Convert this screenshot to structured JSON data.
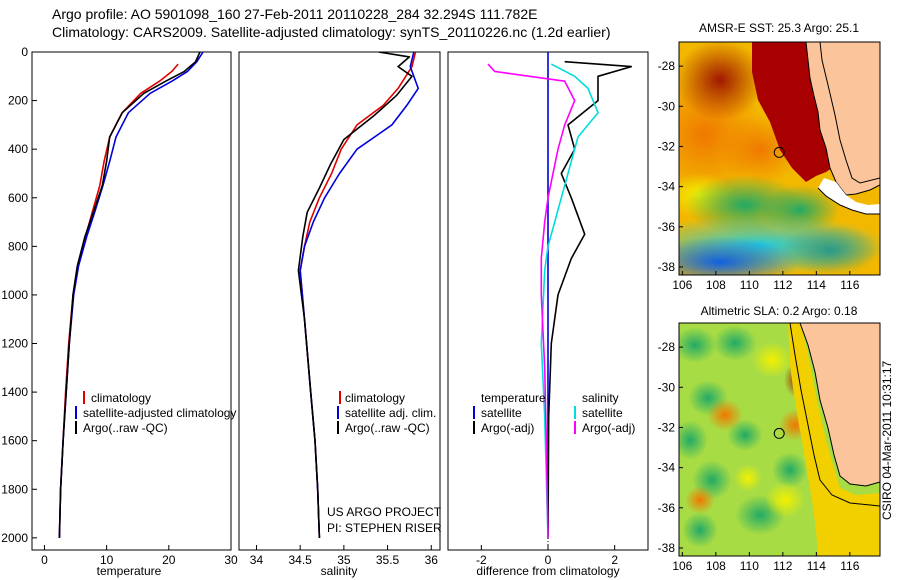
{
  "header": {
    "line1": "Argo profile: AO 5901098_160 27-Feb-2011 20110228_284 32.294S 111.782E",
    "line2": "Climatology: CARS2009. Satellite-adjusted climatology: synTS_20110226.nc (1.2d earlier)"
  },
  "side_label": "CSIRO 04-Mar-2011 10:31:17",
  "project": {
    "line1": "US ARGO PROJECT",
    "line2": "PI: STEPHEN RISER"
  },
  "colors": {
    "climatology": "#e00000",
    "satellite": "#0000dd",
    "argo": "#000000",
    "sat_diff": "#00dddd",
    "argo_diff": "#ff00ff",
    "land": "#fbc49a"
  },
  "chart_data": [
    {
      "type": "line",
      "xlabel": "temperature",
      "xlim": [
        -2,
        30
      ],
      "ylim": [
        0,
        2050
      ],
      "xticks": [
        0,
        10,
        20,
        30
      ],
      "yticks": [
        0,
        200,
        400,
        600,
        800,
        1000,
        1200,
        1400,
        1600,
        1800,
        2000
      ],
      "legend": {
        "placement": "lower-center",
        "entries": [
          "climatology",
          "satellite-adjusted climatology",
          "Argo(..raw -QC)"
        ]
      },
      "series": [
        {
          "name": "climatology",
          "color": "#e00000",
          "x": [
            21.5,
            20.5,
            18.5,
            15.5,
            12.5,
            10.5,
            9.6,
            8.9,
            7.8,
            6.6,
            5.3,
            4.6,
            3.9,
            3.4,
            3.0,
            2.6,
            2.4
          ],
          "y": [
            50,
            80,
            120,
            170,
            250,
            350,
            450,
            550,
            650,
            760,
            880,
            1000,
            1200,
            1400,
            1600,
            1800,
            2000
          ]
        },
        {
          "name": "satellite-adjusted climatology",
          "color": "#0000dd",
          "x": [
            25.5,
            24.5,
            23.0,
            20.5,
            17.0,
            13.5,
            11.5,
            10.5,
            9.4,
            8.2,
            6.8,
            5.5,
            4.7,
            4.0,
            3.5,
            3.0,
            2.6,
            2.4
          ],
          "y": [
            0,
            40,
            80,
            120,
            170,
            250,
            350,
            450,
            550,
            650,
            760,
            880,
            1000,
            1200,
            1400,
            1600,
            1800,
            2000
          ]
        },
        {
          "name": "Argo(..raw -QC)",
          "color": "#000000",
          "x": [
            25.0,
            24.3,
            22.5,
            19.5,
            16.0,
            12.5,
            10.5,
            10.0,
            9.3,
            8.0,
            6.5,
            5.3,
            4.6,
            4.0,
            3.5,
            3.0,
            2.6,
            2.4
          ],
          "y": [
            0,
            40,
            80,
            120,
            170,
            250,
            350,
            450,
            550,
            650,
            760,
            880,
            1000,
            1200,
            1400,
            1600,
            1800,
            2000
          ]
        }
      ]
    },
    {
      "type": "line",
      "xlabel": "salinity",
      "xlim": [
        33.8,
        36.1
      ],
      "ylim": [
        0,
        2050
      ],
      "xticks": [
        34,
        34.5,
        35,
        35.5,
        36
      ],
      "legend": {
        "placement": "lower-center",
        "entries": [
          "climatology",
          "satellite adj. clim.",
          "Argo(..raw -QC)"
        ]
      },
      "series": [
        {
          "name": "climatology",
          "color": "#e00000",
          "x": [
            35.82,
            35.78,
            35.62,
            35.45,
            35.15,
            34.97,
            34.86,
            34.72,
            34.61,
            34.55,
            34.5,
            34.55,
            34.62,
            34.67,
            34.7,
            34.72
          ],
          "y": [
            0,
            60,
            150,
            220,
            300,
            400,
            500,
            600,
            700,
            800,
            900,
            1100,
            1400,
            1600,
            1800,
            2000
          ]
        },
        {
          "name": "satellite adj. clim.",
          "color": "#0000dd",
          "x": [
            35.8,
            35.76,
            35.85,
            35.72,
            35.55,
            35.15,
            34.95,
            34.78,
            34.65,
            34.55,
            34.5,
            34.55,
            34.62,
            34.67,
            34.7,
            34.72
          ],
          "y": [
            0,
            60,
            150,
            220,
            300,
            400,
            500,
            600,
            700,
            800,
            900,
            1100,
            1400,
            1600,
            1800,
            2000
          ]
        },
        {
          "name": "Argo(..raw -QC)",
          "color": "#000000",
          "x": [
            35.4,
            35.75,
            35.62,
            35.78,
            35.6,
            35.35,
            35.0,
            34.85,
            34.72,
            34.58,
            34.53,
            34.48,
            34.55,
            34.62,
            34.67,
            34.7,
            34.72
          ],
          "y": [
            0,
            20,
            60,
            100,
            180,
            260,
            360,
            460,
            560,
            660,
            760,
            900,
            1100,
            1400,
            1600,
            1800,
            2000
          ]
        }
      ]
    },
    {
      "type": "line",
      "xlabel": "difference from climatology",
      "xlim": [
        -3,
        3
      ],
      "ylim": [
        0,
        2050
      ],
      "xticks": [
        -2,
        0,
        2
      ],
      "legend": {
        "placement": "lower-center",
        "entries": [
          "temperature",
          "satellite",
          "Argo(-adj)",
          "salinity",
          "satellite",
          "Argo(-adj)"
        ]
      },
      "series": [
        {
          "name": "temperature satellite",
          "color": "#0000dd",
          "x": [
            0,
            0,
            0,
            0,
            0
          ],
          "y": [
            0,
            500,
            1000,
            1500,
            2000
          ]
        },
        {
          "name": "temperature Argo(-adj)",
          "color": "#000000",
          "x": [
            0.5,
            2.5,
            1.5,
            1.5,
            0.6,
            0.8,
            0.4,
            0.7,
            1.1,
            0.7,
            0.3,
            0.1,
            0.02,
            0
          ],
          "y": [
            40,
            60,
            100,
            200,
            300,
            400,
            500,
            600,
            750,
            850,
            1000,
            1200,
            1500,
            2000
          ]
        },
        {
          "name": "salinity satellite",
          "color": "#00dddd",
          "x": [
            0.1,
            0.8,
            1.2,
            1.5,
            0.9,
            0.6,
            0.4,
            0.2,
            0,
            -0.1,
            -0.2,
            -0.1,
            0
          ],
          "y": [
            50,
            100,
            150,
            250,
            350,
            500,
            600,
            700,
            800,
            900,
            1200,
            1500,
            2000
          ]
        },
        {
          "name": "salinity Argo(-adj)",
          "color": "#ff00ff",
          "x": [
            -1.8,
            -1.6,
            0.5,
            0.8,
            0.5,
            0.3,
            0.0,
            -0.1,
            -0.2,
            -0.2,
            -0.1,
            -0.05,
            0
          ],
          "y": [
            50,
            80,
            120,
            200,
            300,
            400,
            600,
            700,
            850,
            1000,
            1300,
            1600,
            2000
          ]
        }
      ]
    },
    {
      "type": "heatmap",
      "title": "AMSR-E SST: 25.3 Argo: 25.1",
      "xlim": [
        105.8,
        117.8
      ],
      "ylim": [
        -38.4,
        -26.8
      ],
      "xticks": [
        106,
        108,
        110,
        112,
        114,
        116
      ],
      "yticks": [
        -28,
        -30,
        -32,
        -34,
        -36,
        -38
      ],
      "marker": {
        "lon": 111.782,
        "lat": -32.294
      }
    },
    {
      "type": "heatmap",
      "title": "Altimetric SLA: 0.2 Argo: 0.18",
      "xlim": [
        105.8,
        117.8
      ],
      "ylim": [
        -38.4,
        -26.8
      ],
      "xticks": [
        106,
        108,
        110,
        112,
        114,
        116
      ],
      "yticks": [
        -28,
        -30,
        -32,
        -34,
        -36,
        -38
      ],
      "marker": {
        "lon": 111.782,
        "lat": -32.294
      }
    }
  ]
}
